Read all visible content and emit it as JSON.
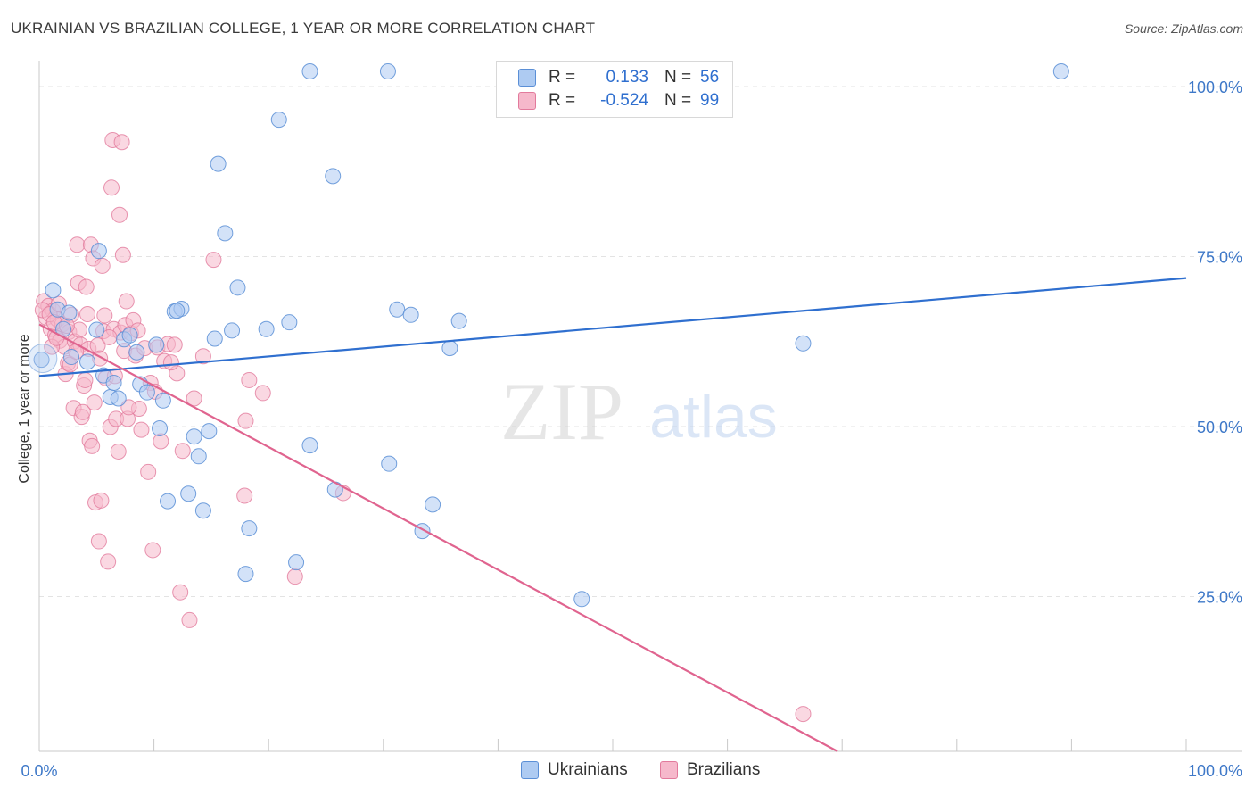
{
  "header": {
    "title": "UKRAINIAN VS BRAZILIAN COLLEGE, 1 YEAR OR MORE CORRELATION CHART",
    "source": "Source: ZipAtlas.com"
  },
  "legend": {
    "ukr": {
      "r_label": "R =",
      "r_value": "0.133",
      "n_label": "N =",
      "n_value": "56"
    },
    "bra": {
      "r_label": "R =",
      "r_value": "-0.524",
      "n_label": "N =",
      "n_value": "99"
    }
  },
  "bottom_legend": {
    "ukr": "Ukrainians",
    "bra": "Brazilians"
  },
  "colors": {
    "ukr_fill": "#aecbf2",
    "ukr_stroke": "#5b8fd6",
    "ukr_line": "#2f6fcf",
    "bra_fill": "#f6b8cb",
    "bra_stroke": "#e27a9c",
    "bra_line": "#e0648f",
    "tick_label": "#3e78c8",
    "grid": "#e3e3e3"
  },
  "watermark": {
    "zip": "ZIP",
    "atlas": "atlas"
  },
  "chart_data": {
    "type": "scatter",
    "title": "UKRAINIAN VS BRAZILIAN COLLEGE, 1 YEAR OR MORE CORRELATION CHART",
    "xlabel": "",
    "ylabel": "College, 1 year or more",
    "xlim": [
      0,
      100
    ],
    "ylim": [
      0,
      100
    ],
    "x_tick_labels": [
      "0.0%",
      "100.0%"
    ],
    "y_ticks": [
      25,
      50,
      75,
      100
    ],
    "y_tick_labels": [
      "25.0%",
      "50.0%",
      "75.0%",
      "100.0%"
    ],
    "series": [
      {
        "name": "Ukrainians",
        "trend": {
          "x": [
            0,
            100
          ],
          "y": [
            55.2,
            69.6
          ]
        },
        "points": [
          [
            0.2,
            57.6
          ],
          [
            1.2,
            67.8
          ],
          [
            1.6,
            65.0
          ],
          [
            2.1,
            62.1
          ],
          [
            2.8,
            58.0
          ],
          [
            4.2,
            57.3
          ],
          [
            5.2,
            73.6
          ],
          [
            5.6,
            55.3
          ],
          [
            6.2,
            52.1
          ],
          [
            6.5,
            54.2
          ],
          [
            6.9,
            51.9
          ],
          [
            7.4,
            60.6
          ],
          [
            7.9,
            61.2
          ],
          [
            8.5,
            58.7
          ],
          [
            8.8,
            54.0
          ],
          [
            9.4,
            52.8
          ],
          [
            10.2,
            59.8
          ],
          [
            10.5,
            47.5
          ],
          [
            10.8,
            51.6
          ],
          [
            11.2,
            36.8
          ],
          [
            11.8,
            64.7
          ],
          [
            12.4,
            65.1
          ],
          [
            13.0,
            37.9
          ],
          [
            13.5,
            46.3
          ],
          [
            13.9,
            43.4
          ],
          [
            14.3,
            35.4
          ],
          [
            14.8,
            47.1
          ],
          [
            15.3,
            60.7
          ],
          [
            15.6,
            86.4
          ],
          [
            16.2,
            76.2
          ],
          [
            16.8,
            61.9
          ],
          [
            17.3,
            68.2
          ],
          [
            18.0,
            26.1
          ],
          [
            18.3,
            32.8
          ],
          [
            19.8,
            62.1
          ],
          [
            20.9,
            92.9
          ],
          [
            21.8,
            63.1
          ],
          [
            22.4,
            27.8
          ],
          [
            23.6,
            45.0
          ],
          [
            23.6,
            100.0
          ],
          [
            25.6,
            84.6
          ],
          [
            25.8,
            38.5
          ],
          [
            30.4,
            100.0
          ],
          [
            30.5,
            42.3
          ],
          [
            31.2,
            65.0
          ],
          [
            32.4,
            64.2
          ],
          [
            33.4,
            32.4
          ],
          [
            34.3,
            36.3
          ],
          [
            35.8,
            59.3
          ],
          [
            36.6,
            63.3
          ],
          [
            47.3,
            22.4
          ],
          [
            66.6,
            60.0
          ],
          [
            89.1,
            100.0
          ],
          [
            2.6,
            64.5
          ],
          [
            5.0,
            62.0
          ],
          [
            12.0,
            64.8
          ]
        ]
      },
      {
        "name": "Brazilians",
        "trend": {
          "x": [
            0,
            69.6
          ],
          "y": [
            62.8,
            0
          ]
        },
        "points": [
          [
            0.4,
            66.2
          ],
          [
            0.6,
            63.8
          ],
          [
            0.8,
            65.5
          ],
          [
            1.0,
            62.1
          ],
          [
            1.2,
            64.8
          ],
          [
            1.4,
            61.2
          ],
          [
            1.6,
            63.5
          ],
          [
            1.8,
            60.4
          ],
          [
            2.0,
            62.8
          ],
          [
            2.2,
            59.5
          ],
          [
            2.3,
            55.5
          ],
          [
            2.5,
            57.1
          ],
          [
            2.6,
            61.7
          ],
          [
            2.8,
            64.2
          ],
          [
            3.0,
            50.5
          ],
          [
            3.1,
            60.3
          ],
          [
            3.3,
            74.5
          ],
          [
            3.4,
            68.9
          ],
          [
            3.5,
            62.0
          ],
          [
            3.6,
            59.8
          ],
          [
            3.7,
            49.2
          ],
          [
            3.8,
            49.9
          ],
          [
            3.9,
            53.8
          ],
          [
            4.0,
            54.6
          ],
          [
            4.1,
            68.3
          ],
          [
            4.2,
            64.3
          ],
          [
            4.3,
            59.2
          ],
          [
            4.4,
            45.7
          ],
          [
            4.5,
            74.5
          ],
          [
            4.6,
            44.9
          ],
          [
            4.7,
            72.5
          ],
          [
            4.9,
            36.6
          ],
          [
            5.1,
            59.7
          ],
          [
            5.2,
            30.9
          ],
          [
            5.4,
            36.9
          ],
          [
            5.5,
            71.4
          ],
          [
            5.6,
            61.8
          ],
          [
            5.8,
            54.9
          ],
          [
            6.0,
            27.9
          ],
          [
            6.2,
            47.7
          ],
          [
            6.3,
            82.9
          ],
          [
            6.4,
            89.9
          ],
          [
            6.5,
            62.1
          ],
          [
            6.7,
            48.9
          ],
          [
            6.9,
            44.1
          ],
          [
            7.0,
            78.9
          ],
          [
            7.1,
            61.6
          ],
          [
            7.2,
            89.6
          ],
          [
            7.3,
            73.0
          ],
          [
            7.4,
            58.9
          ],
          [
            7.5,
            62.7
          ],
          [
            7.6,
            66.2
          ],
          [
            7.7,
            48.9
          ],
          [
            8.0,
            61.5
          ],
          [
            8.2,
            63.4
          ],
          [
            8.4,
            58.2
          ],
          [
            8.7,
            50.4
          ],
          [
            8.9,
            47.3
          ],
          [
            9.2,
            59.3
          ],
          [
            9.5,
            41.1
          ],
          [
            9.9,
            29.6
          ],
          [
            10.3,
            59.4
          ],
          [
            10.6,
            45.6
          ],
          [
            10.9,
            57.4
          ],
          [
            11.2,
            59.9
          ],
          [
            11.8,
            59.8
          ],
          [
            12.0,
            55.6
          ],
          [
            12.3,
            23.4
          ],
          [
            12.5,
            44.2
          ],
          [
            13.1,
            19.3
          ],
          [
            13.5,
            51.9
          ],
          [
            14.3,
            58.1
          ],
          [
            15.2,
            72.3
          ],
          [
            17.9,
            37.6
          ],
          [
            18.0,
            48.6
          ],
          [
            18.3,
            54.6
          ],
          [
            19.5,
            52.7
          ],
          [
            22.3,
            25.7
          ],
          [
            26.5,
            38.0
          ],
          [
            66.6,
            5.5
          ],
          [
            0.3,
            64.9
          ],
          [
            0.9,
            64.3
          ],
          [
            1.1,
            59.5
          ],
          [
            1.3,
            63.1
          ],
          [
            1.5,
            60.8
          ],
          [
            1.7,
            65.8
          ],
          [
            2.4,
            62.6
          ],
          [
            2.7,
            56.9
          ],
          [
            3.2,
            58.8
          ],
          [
            4.8,
            51.3
          ],
          [
            5.3,
            57.8
          ],
          [
            5.7,
            64.1
          ],
          [
            6.1,
            60.9
          ],
          [
            6.6,
            55.2
          ],
          [
            7.8,
            50.6
          ],
          [
            8.6,
            61.9
          ],
          [
            9.7,
            54.2
          ],
          [
            10.1,
            52.9
          ],
          [
            11.5,
            57.2
          ]
        ]
      }
    ]
  }
}
